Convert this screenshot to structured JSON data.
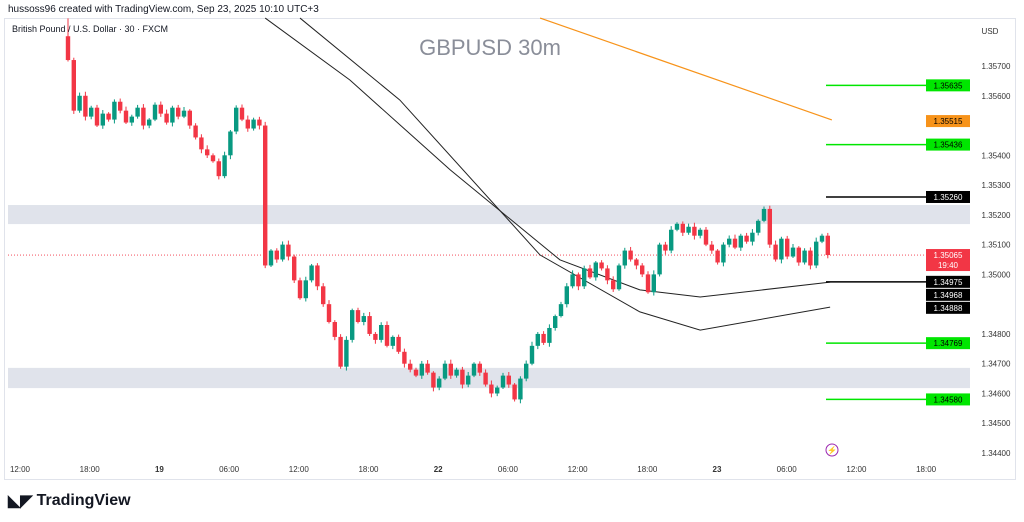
{
  "attribution": "hussoss96 created with TradingView.com, Sep 23, 2025 10:10 UTC+3",
  "symbol_label": "British Pound / U.S. Dollar · 30 · FXCM",
  "watermark": "GBPUSD 30m",
  "currency": "USD",
  "logo": "TradingView",
  "colors": {
    "up": "#089981",
    "down": "#f23645",
    "level_green": "#00e600",
    "orange": "#f7931a",
    "zone": "#e0e3eb"
  },
  "chart_data": {
    "type": "candlestick",
    "title": "GBPUSD 30m",
    "ylim": [
      1.3438,
      1.3586
    ],
    "y_ticks": [
      "1.35700",
      "1.35600",
      "1.35400",
      "1.35300",
      "1.35200",
      "1.35100",
      "1.35000",
      "1.34800",
      "1.34700",
      "1.34600",
      "1.34500",
      "1.34400"
    ],
    "x_ticks": [
      "12:00",
      "18:00",
      "19",
      "06:00",
      "12:00",
      "18:00",
      "22",
      "06:00",
      "12:00",
      "18:00",
      "23",
      "06:00",
      "12:00",
      "18:00"
    ],
    "first_open": 1.358,
    "closes": [
      1.3572,
      1.3555,
      1.356,
      1.3553,
      1.3556,
      1.355,
      1.3554,
      1.3552,
      1.3558,
      1.3555,
      1.3551,
      1.3553,
      1.3556,
      1.355,
      1.3552,
      1.3557,
      1.3554,
      1.3551,
      1.3556,
      1.3553,
      1.3555,
      1.355,
      1.3546,
      1.3542,
      1.354,
      1.3538,
      1.3533,
      1.354,
      1.3548,
      1.3556,
      1.3552,
      1.3549,
      1.3552,
      1.355,
      1.3503,
      1.3508,
      1.3505,
      1.351,
      1.3506,
      1.3498,
      1.3492,
      1.3498,
      1.3503,
      1.3496,
      1.349,
      1.3484,
      1.3479,
      1.3469,
      1.3478,
      1.3488,
      1.3484,
      1.3486,
      1.348,
      1.3478,
      1.3483,
      1.3476,
      1.3479,
      1.3474,
      1.347,
      1.3468,
      1.3466,
      1.347,
      1.3467,
      1.3462,
      1.3465,
      1.347,
      1.3466,
      1.3468,
      1.3463,
      1.3466,
      1.347,
      1.3467,
      1.3463,
      1.346,
      1.3462,
      1.3466,
      1.3463,
      1.3458,
      1.3465,
      1.347,
      1.3476,
      1.348,
      1.3477,
      1.3482,
      1.3486,
      1.349,
      1.3496,
      1.35,
      1.3496,
      1.3502,
      1.3499,
      1.3504,
      1.3502,
      1.3498,
      1.3495,
      1.3503,
      1.3508,
      1.3505,
      1.3503,
      1.35,
      1.3494,
      1.35,
      1.351,
      1.3508,
      1.3515,
      1.3517,
      1.3514,
      1.3516,
      1.3513,
      1.3515,
      1.351,
      1.3508,
      1.3504,
      1.351,
      1.3512,
      1.3509,
      1.3513,
      1.3511,
      1.3514,
      1.3518,
      1.3522,
      1.351,
      1.3505,
      1.3512,
      1.3506,
      1.3509,
      1.3504,
      1.3508,
      1.3503,
      1.3511,
      1.3513,
      1.35065
    ],
    "ma_fast": [
      [
        34,
        1.35861
      ],
      [
        48.6,
        1.35653
      ],
      [
        65.9,
        1.35351
      ],
      [
        84.8,
        1.35049
      ],
      [
        98.6,
        1.34948
      ],
      [
        109,
        1.34924
      ],
      [
        131.4,
        1.34974
      ]
    ],
    "ma_slow": [
      [
        40,
        1.35861
      ],
      [
        57.2,
        1.35586
      ],
      [
        81.4,
        1.35065
      ],
      [
        98.6,
        1.34874
      ],
      [
        109,
        1.34813
      ],
      [
        131.4,
        1.3489
      ]
    ],
    "trendline": [
      [
        81.4,
        1.35861
      ],
      [
        131.7,
        1.35519
      ]
    ],
    "zones": [
      [
        1.35169,
        1.35233
      ],
      [
        1.34618,
        1.34686
      ]
    ],
    "levels": [
      {
        "price": "1.35635",
        "color": "#00e600",
        "text": "#000"
      },
      {
        "price": "1.35436",
        "color": "#00e600",
        "text": "#000"
      },
      {
        "price": "1.35260",
        "color": "#000000",
        "text": "#fff"
      },
      {
        "price": "1.34975",
        "color": "#000000",
        "text": "#fff"
      },
      {
        "price": "1.34769",
        "color": "#00e600",
        "text": "#000"
      },
      {
        "price": "1.34580",
        "color": "#00e600",
        "text": "#000"
      }
    ],
    "badges": [
      {
        "price": "1.35515",
        "color": "#f7931a",
        "text": "#000"
      },
      {
        "price": "1.34968",
        "color": "#000000",
        "text": "#fff"
      },
      {
        "price": "1.34888",
        "color": "#000000",
        "text": "#fff"
      }
    ],
    "last_price": "1.35065",
    "countdown": "19:40"
  }
}
